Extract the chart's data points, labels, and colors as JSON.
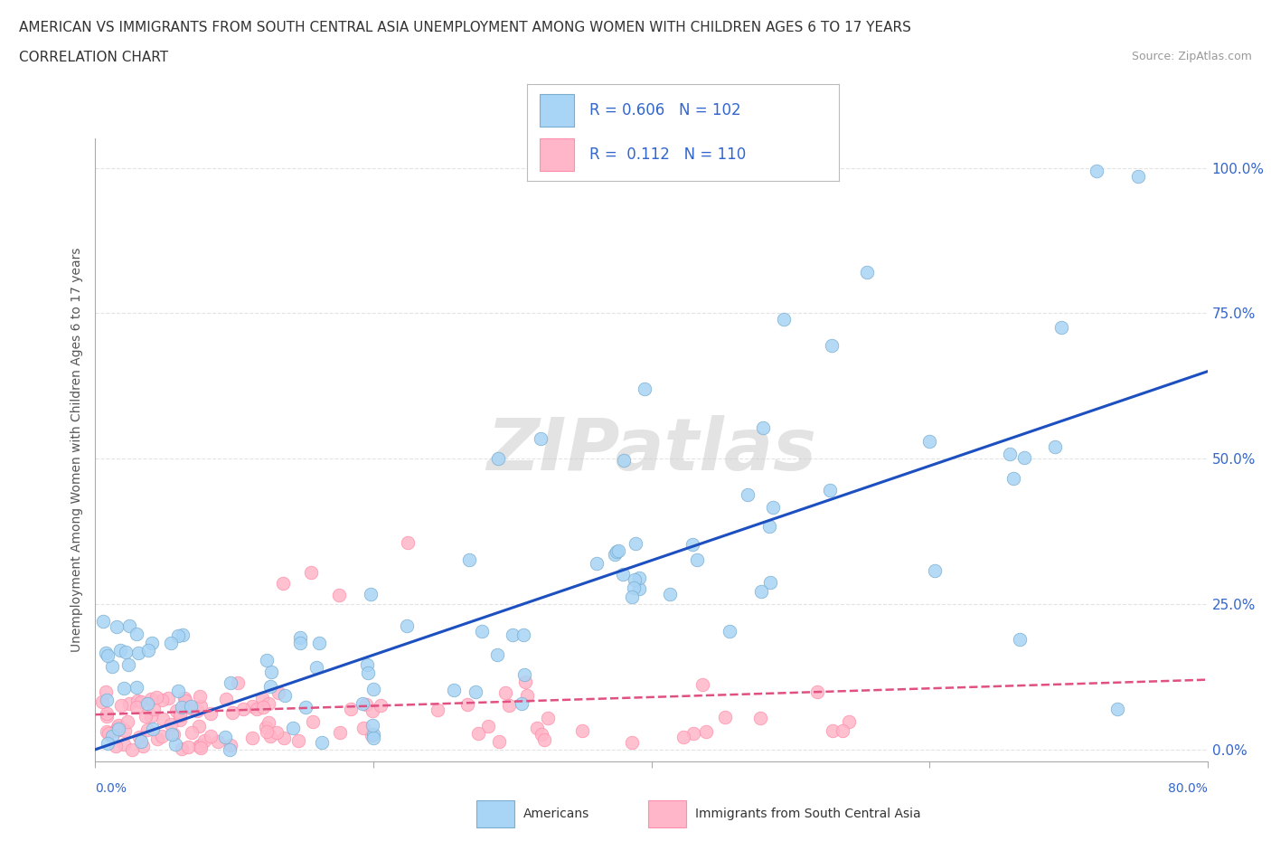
{
  "title_line1": "AMERICAN VS IMMIGRANTS FROM SOUTH CENTRAL ASIA UNEMPLOYMENT AMONG WOMEN WITH CHILDREN AGES 6 TO 17 YEARS",
  "title_line2": "CORRELATION CHART",
  "source": "Source: ZipAtlas.com",
  "ylabel": "Unemployment Among Women with Children Ages 6 to 17 years",
  "xlim": [
    0,
    0.8
  ],
  "ylim": [
    -0.02,
    1.05
  ],
  "yticks": [
    0.0,
    0.25,
    0.5,
    0.75,
    1.0
  ],
  "ytick_labels": [
    "0.0%",
    "25.0%",
    "50.0%",
    "75.0%",
    "100.0%"
  ],
  "watermark": "ZIPatlas",
  "color_american": "#A8D4F5",
  "color_immigrant": "#FFB6C8",
  "color_american_edge": "#7AAED0",
  "color_immigrant_edge": "#FF8FAA",
  "color_american_line": "#1C4FBF",
  "color_immigrant_line": "#E05080",
  "color_ytick": "#3366CC",
  "background_color": "#FFFFFF",
  "grid_color": "#DDDDDD",
  "am_line_start_y": 0.0,
  "am_line_end_y": 0.65,
  "im_line_start_y": 0.06,
  "im_line_end_y": 0.12
}
